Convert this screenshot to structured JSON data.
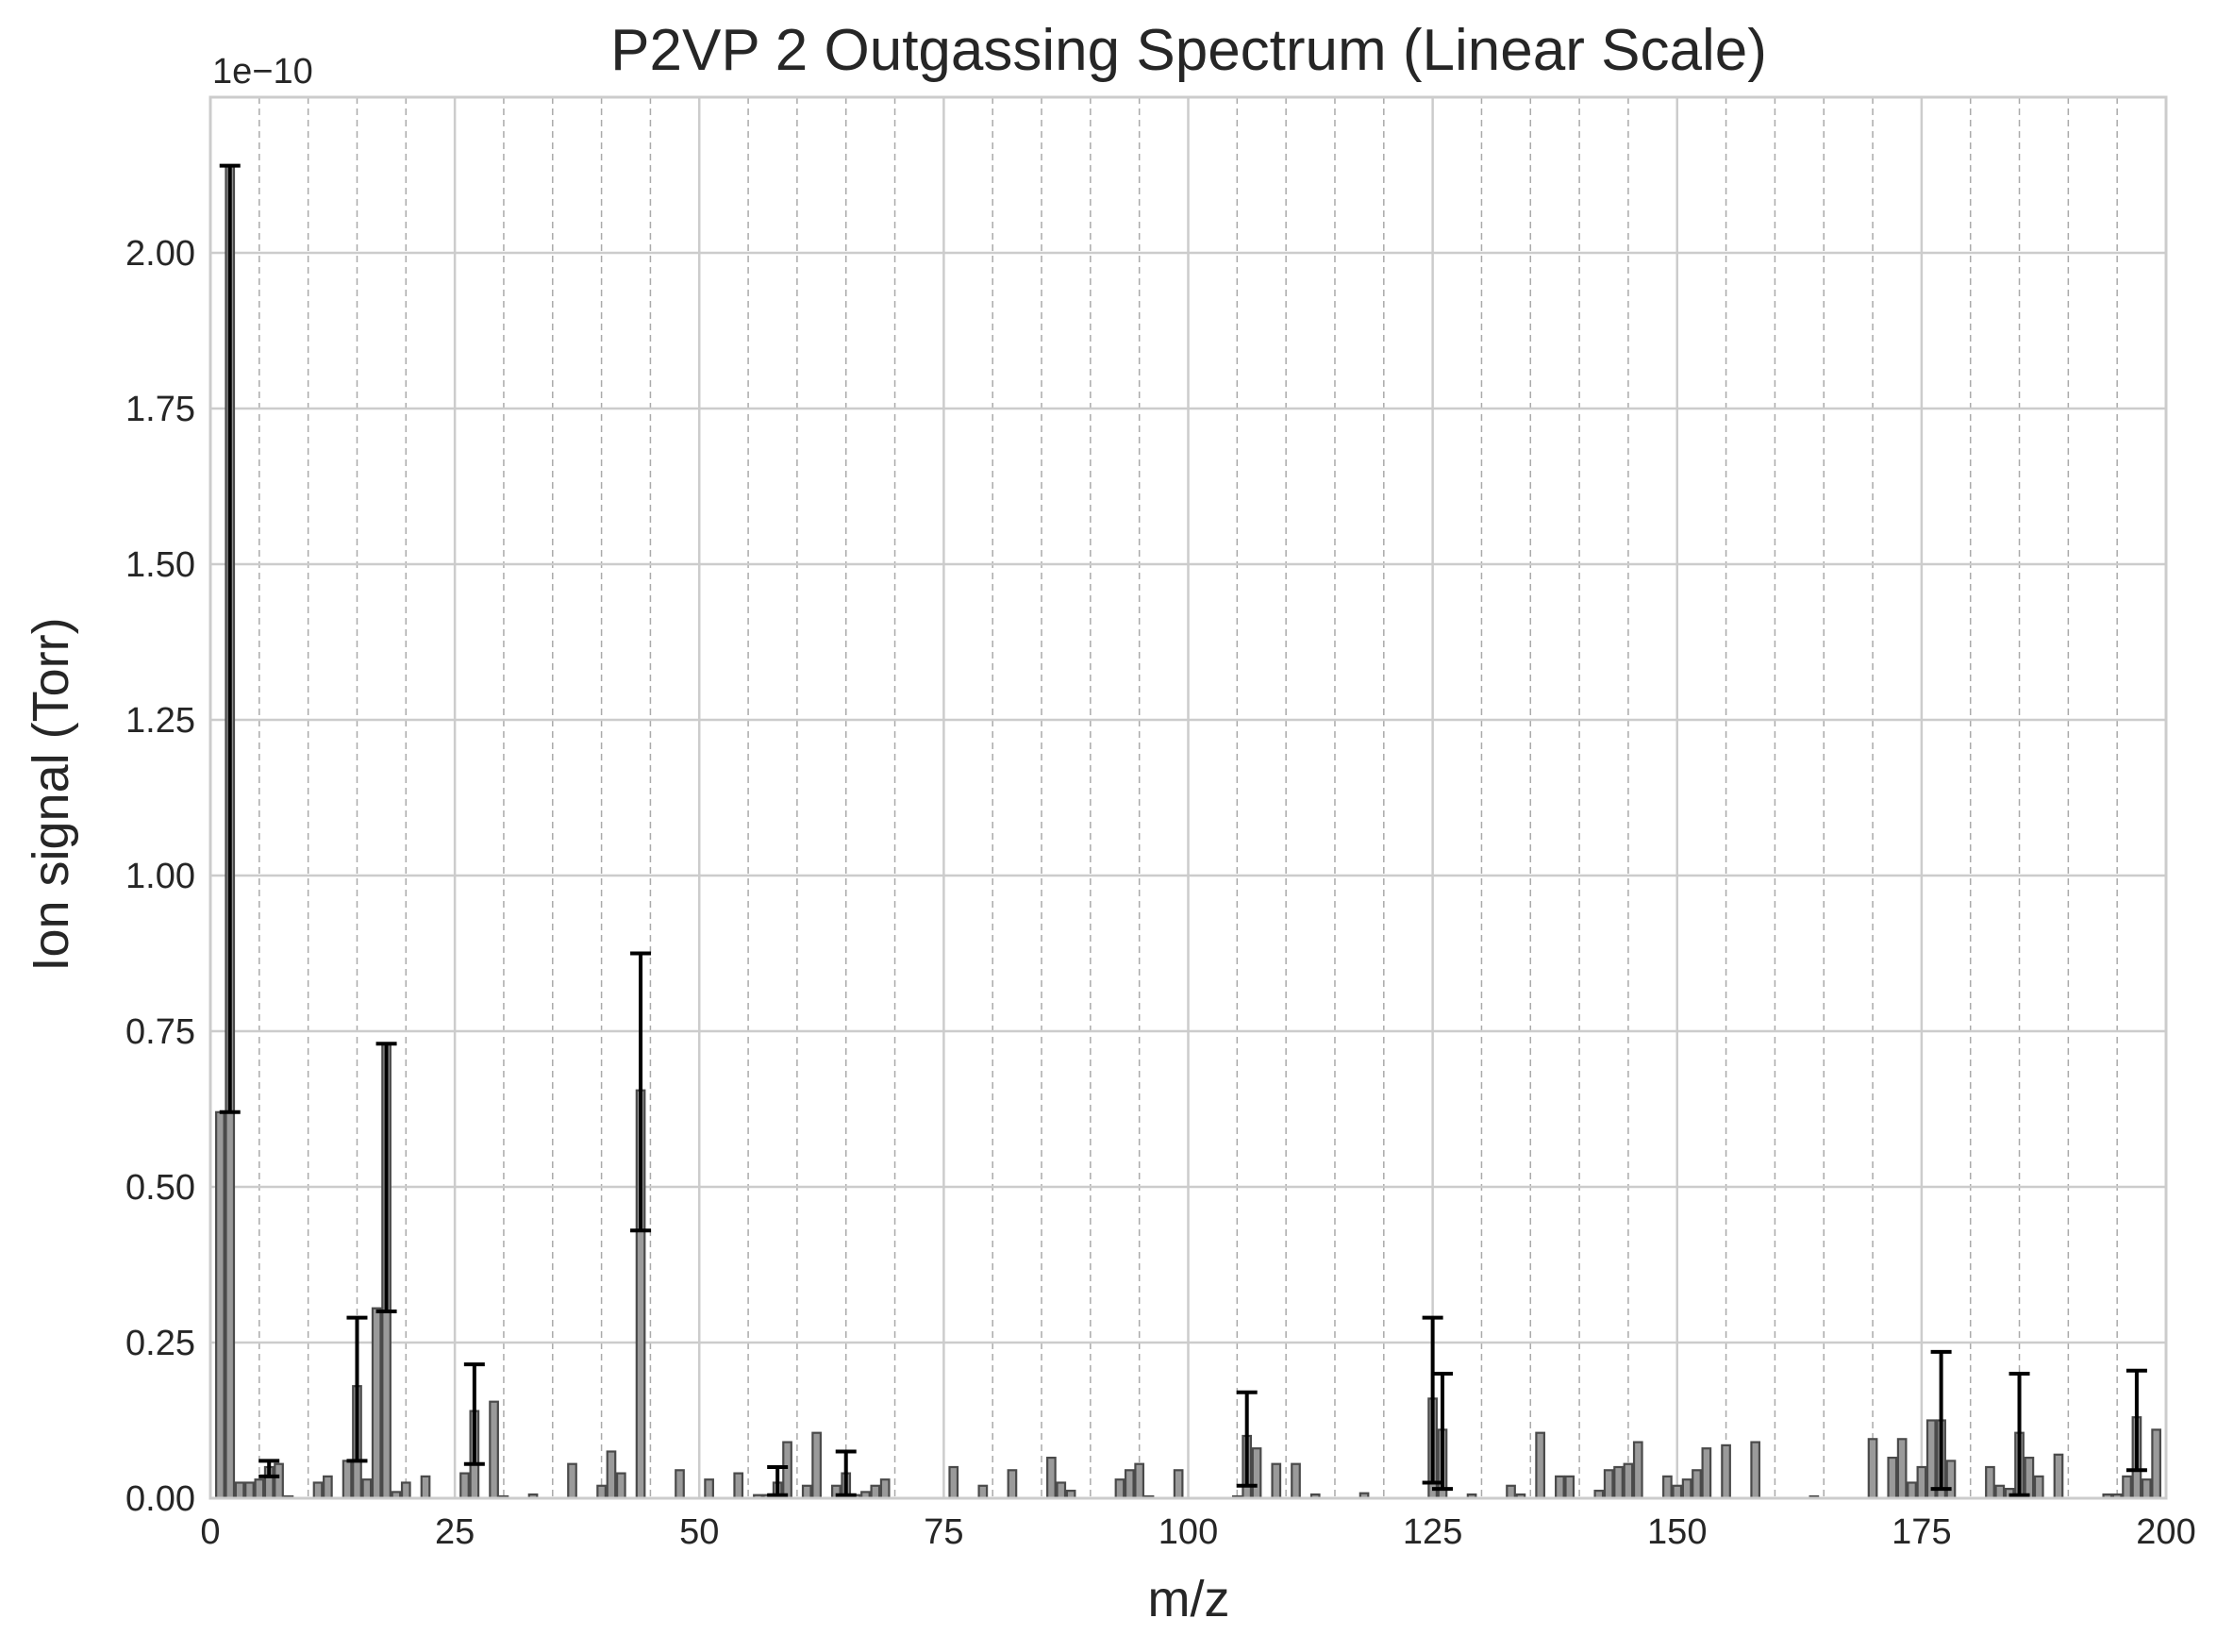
{
  "chart_data": {
    "type": "bar",
    "title": "P2VP 2 Outgassing Spectrum (Linear Scale)",
    "xlabel": "m/z",
    "ylabel": "Ion signal (Torr)",
    "y_offset_label": "1e−10",
    "y_unit_multiplier": 1e-10,
    "xlim": [
      0,
      200
    ],
    "ylim": [
      0,
      2.25
    ],
    "x_ticks": [
      0,
      25,
      50,
      75,
      100,
      125,
      150,
      175,
      200
    ],
    "x_tick_labels": [
      "0",
      "25",
      "50",
      "75",
      "100",
      "125",
      "150",
      "175",
      "200"
    ],
    "y_ticks": [
      0,
      0.25,
      0.5,
      0.75,
      1.0,
      1.25,
      1.5,
      1.75,
      2.0
    ],
    "y_tick_labels": [
      "0.00",
      "0.25",
      "0.50",
      "0.75",
      "1.00",
      "1.25",
      "1.50",
      "1.75",
      "2.00"
    ],
    "minor_x_grid_step": 5,
    "grid": true,
    "colors": {
      "bar_fill": "#9a9a9a",
      "bar_edge": "#4a4a4a",
      "error_bar": "#000000",
      "major_grid": "#cccccc",
      "minor_grid": "#aaaaaa",
      "frame": "#cccccc"
    },
    "series": [
      {
        "points": [
          {
            "x": 1,
            "y": 0.62
          },
          {
            "x": 2,
            "y": 2.14,
            "err": [
              0.62,
              2.14
            ]
          },
          {
            "x": 3,
            "y": 0.025
          },
          {
            "x": 4,
            "y": 0.025
          },
          {
            "x": 5,
            "y": 0.03
          },
          {
            "x": 6,
            "y": 0.05,
            "err": [
              0.035,
              0.06
            ]
          },
          {
            "x": 7,
            "y": 0.055
          },
          {
            "x": 8,
            "y": 0.003
          },
          {
            "x": 11,
            "y": 0.025
          },
          {
            "x": 12,
            "y": 0.035
          },
          {
            "x": 14,
            "y": 0.06
          },
          {
            "x": 15,
            "y": 0.18,
            "err": [
              0.06,
              0.29
            ]
          },
          {
            "x": 16,
            "y": 0.03
          },
          {
            "x": 17,
            "y": 0.305
          },
          {
            "x": 18,
            "y": 0.73,
            "err": [
              0.3,
              0.73
            ]
          },
          {
            "x": 19,
            "y": 0.01
          },
          {
            "x": 20,
            "y": 0.025
          },
          {
            "x": 22,
            "y": 0.035
          },
          {
            "x": 26,
            "y": 0.04
          },
          {
            "x": 27,
            "y": 0.14,
            "err": [
              0.055,
              0.215
            ]
          },
          {
            "x": 29,
            "y": 0.155
          },
          {
            "x": 30,
            "y": 0.003
          },
          {
            "x": 33,
            "y": 0.006
          },
          {
            "x": 37,
            "y": 0.055
          },
          {
            "x": 40,
            "y": 0.02
          },
          {
            "x": 41,
            "y": 0.075
          },
          {
            "x": 42,
            "y": 0.04
          },
          {
            "x": 44,
            "y": 0.655,
            "err": [
              0.43,
              0.875
            ]
          },
          {
            "x": 48,
            "y": 0.045
          },
          {
            "x": 51,
            "y": 0.03
          },
          {
            "x": 54,
            "y": 0.04
          },
          {
            "x": 56,
            "y": 0.005
          },
          {
            "x": 57,
            "y": 0.005
          },
          {
            "x": 58,
            "y": 0.025,
            "err": [
              0.005,
              0.05
            ]
          },
          {
            "x": 59,
            "y": 0.09
          },
          {
            "x": 61,
            "y": 0.02
          },
          {
            "x": 62,
            "y": 0.105
          },
          {
            "x": 64,
            "y": 0.02
          },
          {
            "x": 65,
            "y": 0.04,
            "err": [
              0.005,
              0.075
            ]
          },
          {
            "x": 66,
            "y": 0.005
          },
          {
            "x": 67,
            "y": 0.01
          },
          {
            "x": 68,
            "y": 0.02
          },
          {
            "x": 69,
            "y": 0.03
          },
          {
            "x": 76,
            "y": 0.05
          },
          {
            "x": 79,
            "y": 0.02
          },
          {
            "x": 82,
            "y": 0.045
          },
          {
            "x": 86,
            "y": 0.065
          },
          {
            "x": 87,
            "y": 0.025
          },
          {
            "x": 88,
            "y": 0.012
          },
          {
            "x": 93,
            "y": 0.03
          },
          {
            "x": 94,
            "y": 0.045
          },
          {
            "x": 95,
            "y": 0.055
          },
          {
            "x": 96,
            "y": 0.003
          },
          {
            "x": 99,
            "y": 0.045
          },
          {
            "x": 105,
            "y": 0.003
          },
          {
            "x": 106,
            "y": 0.1,
            "err": [
              0.02,
              0.17
            ]
          },
          {
            "x": 107,
            "y": 0.08
          },
          {
            "x": 109,
            "y": 0.055
          },
          {
            "x": 111,
            "y": 0.055
          },
          {
            "x": 113,
            "y": 0.006
          },
          {
            "x": 118,
            "y": 0.008
          },
          {
            "x": 125,
            "y": 0.16,
            "err": [
              0.025,
              0.29
            ]
          },
          {
            "x": 126,
            "y": 0.11,
            "err": [
              0.015,
              0.2
            ]
          },
          {
            "x": 129,
            "y": 0.006
          },
          {
            "x": 133,
            "y": 0.02
          },
          {
            "x": 134,
            "y": 0.006
          },
          {
            "x": 136,
            "y": 0.105
          },
          {
            "x": 138,
            "y": 0.035
          },
          {
            "x": 139,
            "y": 0.035
          },
          {
            "x": 142,
            "y": 0.012
          },
          {
            "x": 143,
            "y": 0.045
          },
          {
            "x": 144,
            "y": 0.05
          },
          {
            "x": 145,
            "y": 0.055
          },
          {
            "x": 146,
            "y": 0.09
          },
          {
            "x": 149,
            "y": 0.035
          },
          {
            "x": 150,
            "y": 0.02
          },
          {
            "x": 151,
            "y": 0.03
          },
          {
            "x": 152,
            "y": 0.045
          },
          {
            "x": 153,
            "y": 0.08
          },
          {
            "x": 155,
            "y": 0.085
          },
          {
            "x": 158,
            "y": 0.09
          },
          {
            "x": 164,
            "y": 0.003
          },
          {
            "x": 170,
            "y": 0.095
          },
          {
            "x": 172,
            "y": 0.065
          },
          {
            "x": 173,
            "y": 0.095
          },
          {
            "x": 174,
            "y": 0.025
          },
          {
            "x": 175,
            "y": 0.05
          },
          {
            "x": 176,
            "y": 0.125
          },
          {
            "x": 177,
            "y": 0.125,
            "err": [
              0.015,
              0.235
            ]
          },
          {
            "x": 178,
            "y": 0.06
          },
          {
            "x": 182,
            "y": 0.05
          },
          {
            "x": 183,
            "y": 0.02
          },
          {
            "x": 184,
            "y": 0.015
          },
          {
            "x": 185,
            "y": 0.105,
            "err": [
              0.005,
              0.2
            ]
          },
          {
            "x": 186,
            "y": 0.065
          },
          {
            "x": 187,
            "y": 0.035
          },
          {
            "x": 189,
            "y": 0.07
          },
          {
            "x": 194,
            "y": 0.006
          },
          {
            "x": 195,
            "y": 0.006
          },
          {
            "x": 196,
            "y": 0.035
          },
          {
            "x": 197,
            "y": 0.13,
            "err": [
              0.045,
              0.205
            ]
          },
          {
            "x": 198,
            "y": 0.03
          },
          {
            "x": 199,
            "y": 0.11
          }
        ]
      }
    ]
  }
}
